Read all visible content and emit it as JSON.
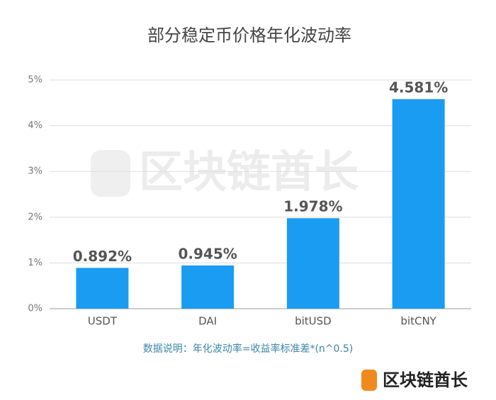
{
  "chart_data": {
    "type": "bar",
    "title": "部分稳定币价格年化波动率",
    "categories": [
      "USDT",
      "DAI",
      "bitUSD",
      "bitCNY"
    ],
    "values": [
      0.892,
      0.945,
      1.978,
      4.581
    ],
    "value_labels": [
      "0.892%",
      "0.945%",
      "1.978%",
      "4.581%"
    ],
    "color": "#1a9cf2",
    "ylim": [
      0,
      5
    ],
    "yticks": [
      {
        "value": 0,
        "label": "0%"
      },
      {
        "value": 1,
        "label": "1%"
      },
      {
        "value": 2,
        "label": "2%"
      },
      {
        "value": 3,
        "label": "3%"
      },
      {
        "value": 4,
        "label": "4%"
      },
      {
        "value": 5,
        "label": "5%"
      }
    ],
    "grid": true,
    "note": "数据说明：年化波动率=收益率标准差*(n^0.5)",
    "watermark": "区块链酋长",
    "brand": "区块链酋长"
  }
}
